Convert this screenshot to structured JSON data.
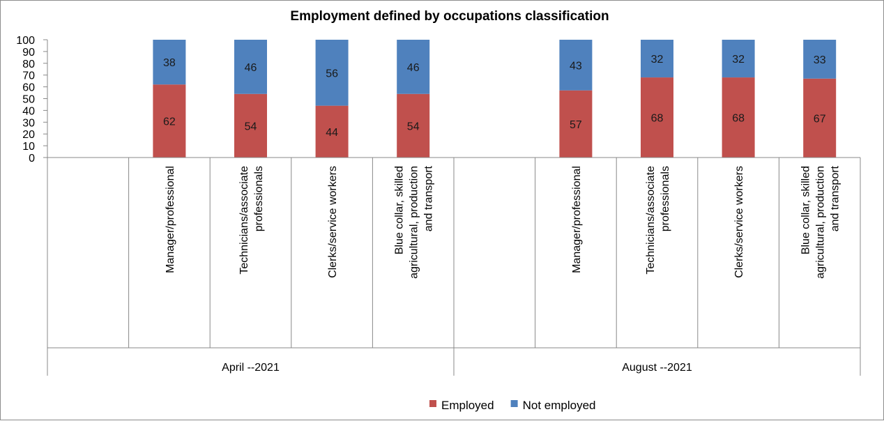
{
  "chart_data": {
    "type": "bar",
    "stacked": true,
    "title": "Employment defined by occupations  classification",
    "xlabel": "",
    "ylabel": "",
    "ylim": [
      0,
      100
    ],
    "yticks": [
      0,
      10,
      20,
      30,
      40,
      50,
      60,
      70,
      80,
      90,
      100
    ],
    "grid": false,
    "legend_position": "bottom",
    "groups": [
      {
        "label": "April --2021",
        "categories": [
          "",
          "Manager/professional",
          "Technicians/associate professionals",
          "Clerks/service workers",
          "Blue collar, skilled agricultural, production and transport"
        ]
      },
      {
        "label": "August --2021",
        "categories": [
          "",
          "Manager/professional",
          "Technicians/associate professionals",
          "Clerks/service workers",
          "Blue collar, skilled agricultural, production and transport"
        ]
      }
    ],
    "series": [
      {
        "name": "Employed",
        "color": "#c0504d",
        "values": [
          null,
          62,
          54,
          44,
          54,
          null,
          57,
          68,
          68,
          67
        ]
      },
      {
        "name": "Not employed",
        "color": "#4f81bd",
        "values": [
          null,
          38,
          46,
          56,
          46,
          null,
          43,
          32,
          32,
          33
        ]
      }
    ]
  }
}
